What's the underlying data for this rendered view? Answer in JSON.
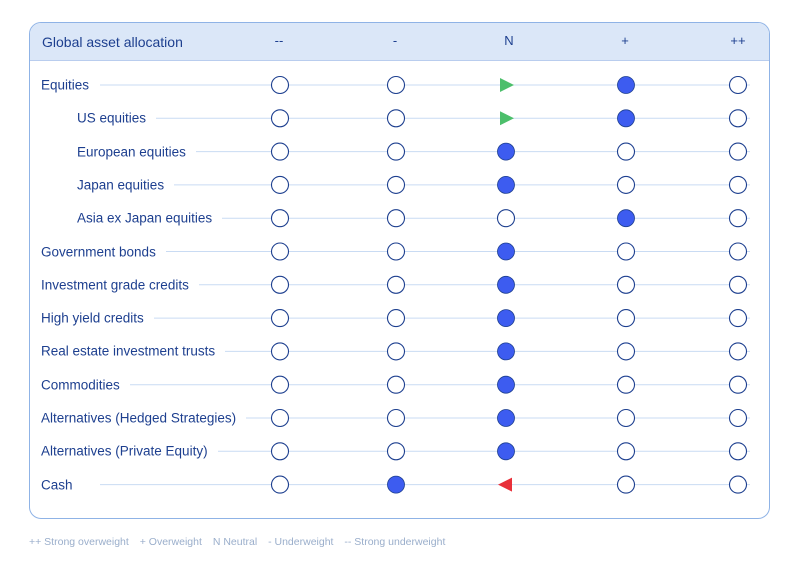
{
  "chart_data": {
    "type": "table",
    "title": "Global asset allocation",
    "columns": [
      "--",
      "-",
      "N",
      "+",
      "++"
    ],
    "rows": [
      {
        "label": "Equities",
        "level": 0,
        "position": "+",
        "prev_position": "N",
        "change": "up"
      },
      {
        "label": "US equities",
        "level": 1,
        "position": "+",
        "prev_position": "N",
        "change": "up"
      },
      {
        "label": "European equities",
        "level": 1,
        "position": "N",
        "prev_position": null,
        "change": null
      },
      {
        "label": "Japan equities",
        "level": 1,
        "position": "N",
        "prev_position": null,
        "change": null
      },
      {
        "label": "Asia ex Japan equities",
        "level": 1,
        "position": "+",
        "prev_position": null,
        "change": null
      },
      {
        "label": "Government bonds",
        "level": 0,
        "position": "N",
        "prev_position": null,
        "change": null
      },
      {
        "label": "Investment grade credits",
        "level": 0,
        "position": "N",
        "prev_position": null,
        "change": null
      },
      {
        "label": "High yield credits",
        "level": 0,
        "position": "N",
        "prev_position": null,
        "change": null
      },
      {
        "label": "Real estate investment trusts",
        "level": 0,
        "position": "N",
        "prev_position": null,
        "change": null
      },
      {
        "label": "Commodities",
        "level": 0,
        "position": "N",
        "prev_position": null,
        "change": null
      },
      {
        "label": "Alternatives (Hedged Strategies)",
        "level": 0,
        "position": "N",
        "prev_position": null,
        "change": null
      },
      {
        "label": "Alternatives (Private Equity)",
        "level": 0,
        "position": "N",
        "prev_position": null,
        "change": null
      },
      {
        "label": "Cash",
        "level": 0,
        "position": "-",
        "prev_position": "N",
        "change": "down"
      }
    ],
    "legend": [
      "++ Strong overweight",
      "+ Overweight",
      "N Neutral",
      "- Underweight",
      "-- Strong underweight"
    ]
  },
  "colors": {
    "selected": "#3d5cf0",
    "empty_stroke": "#1d3f8f",
    "up_arrow": "#4cbf6b",
    "down_arrow": "#e8303a",
    "line": "#c9dbf3",
    "text": "#1d3f8f"
  }
}
